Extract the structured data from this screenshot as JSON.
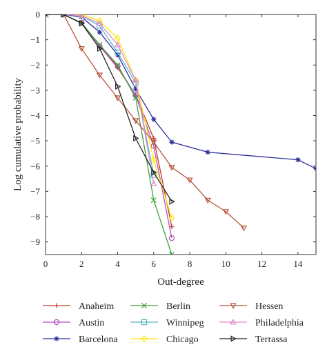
{
  "chart_data": {
    "type": "line",
    "xlabel": "Out-degree",
    "ylabel": "Log cumulative probability",
    "xlim": [
      0,
      15
    ],
    "ylim": [
      -9.5,
      0
    ],
    "xticks": [
      0,
      2,
      4,
      6,
      8,
      10,
      12,
      14
    ],
    "yticks": [
      0,
      -1,
      -2,
      -3,
      -4,
      -5,
      -6,
      -7,
      -8,
      -9
    ],
    "xtick_labels": [
      "0",
      "2",
      "4",
      "6",
      "8",
      "10",
      "12",
      "14"
    ],
    "ytick_labels": [
      "0",
      "−1",
      "−2",
      "−3",
      "−4",
      "−5",
      "−6",
      "−7",
      "−8",
      "−9"
    ],
    "grid": false,
    "legend_position": "bottom",
    "series": [
      {
        "name": "Anaheim",
        "color": "#c0392b",
        "marker": "plus",
        "x": [
          0,
          1,
          2,
          3,
          4,
          5,
          6,
          7
        ],
        "y": [
          0,
          0,
          -0.33,
          -1.25,
          -2.1,
          -3.2,
          -4.9,
          -8.4
        ]
      },
      {
        "name": "Austin",
        "color": "#b04fb8",
        "marker": "circle",
        "x": [
          0,
          1,
          2,
          3,
          4,
          5,
          6,
          7
        ],
        "y": [
          0,
          0,
          -0.33,
          -1.25,
          -2.05,
          -3.2,
          -5.2,
          -8.85
        ]
      },
      {
        "name": "Barcelona",
        "color": "#2c2c9c",
        "marker": "asterisk",
        "x": [
          0,
          1,
          2,
          3,
          4,
          5,
          6,
          7,
          9,
          14,
          15
        ],
        "y": [
          0,
          0,
          -0.1,
          -0.7,
          -1.6,
          -2.95,
          -4.15,
          -5.05,
          -5.45,
          -5.75,
          -6.1
        ]
      },
      {
        "name": "Berlin",
        "color": "#3aa13a",
        "marker": "x",
        "x": [
          0,
          1,
          2,
          3,
          4,
          5,
          6,
          7
        ],
        "y": [
          0,
          0,
          -0.33,
          -1.2,
          -2.0,
          -3.3,
          -7.35,
          -9.5
        ]
      },
      {
        "name": "Winnipeg",
        "color": "#5bb5c9",
        "marker": "square",
        "x": [
          0,
          1,
          2,
          3,
          4,
          5,
          6
        ],
        "y": [
          0,
          0,
          -0.05,
          -0.45,
          -1.5,
          -2.7,
          -6.35
        ]
      },
      {
        "name": "Chicago",
        "color": "#ffe600",
        "marker": "diamond",
        "x": [
          0,
          1,
          2,
          3,
          4,
          5,
          6,
          7
        ],
        "y": [
          0,
          0,
          0,
          -0.25,
          -0.95,
          -2.6,
          -5.75,
          -8.05
        ]
      },
      {
        "name": "Hessen",
        "color": "#b5533a",
        "marker": "triangle-down",
        "x": [
          0,
          1,
          2,
          3,
          4,
          5,
          6,
          7,
          8,
          9,
          10,
          11
        ],
        "y": [
          0,
          0,
          -1.35,
          -2.4,
          -3.3,
          -4.2,
          -5.05,
          -6.05,
          -6.55,
          -7.35,
          -7.8,
          -8.45
        ]
      },
      {
        "name": "Philadelphia",
        "color": "#e08ad0",
        "marker": "triangle-up",
        "x": [
          0,
          1,
          2,
          3,
          4,
          5,
          6
        ],
        "y": [
          0,
          0,
          -0.05,
          -0.35,
          -1.2,
          -2.6,
          -6.7
        ]
      },
      {
        "name": "Terrassa",
        "color": "#222222",
        "marker": "triangle-right",
        "x": [
          0,
          1,
          2,
          3,
          4,
          5,
          6,
          7
        ],
        "y": [
          0,
          0,
          -0.35,
          -1.35,
          -2.85,
          -4.9,
          -6.25,
          -7.4
        ]
      }
    ]
  }
}
